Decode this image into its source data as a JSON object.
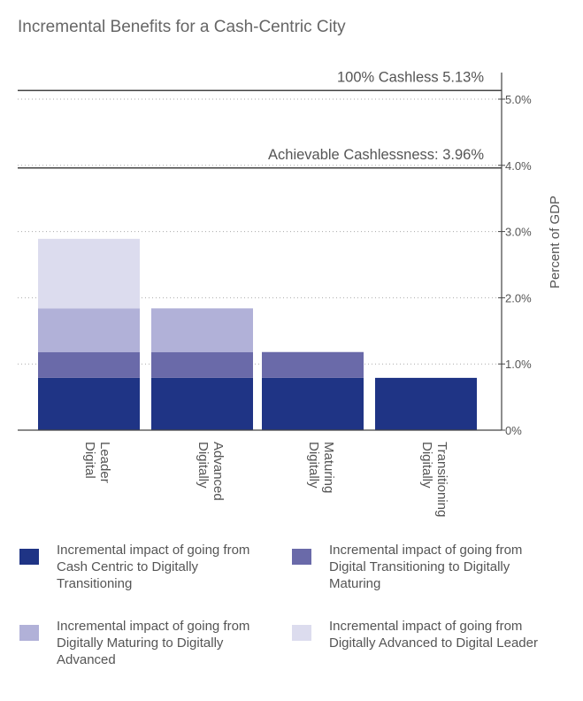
{
  "title": "Incremental Benefits for a Cash-Centric City",
  "chart_data": {
    "type": "bar",
    "stacked": true,
    "categories": [
      "Digital Leader",
      "Digitally Advanced",
      "Digitally Maturing",
      "Digitally Transitioning"
    ],
    "series": [
      {
        "name": "Incremental impact of going from Cash Centric to Digitally Transitioning",
        "color": "#1f3485",
        "values": [
          0.79,
          0.79,
          0.79,
          0.79
        ]
      },
      {
        "name": "Incremental impact of going from Digital Transitioning to Digitally Maturing",
        "color": "#6a6aa9",
        "values": [
          0.39,
          0.39,
          0.39,
          0
        ]
      },
      {
        "name": "Incremental impact of going from Digitally Maturing to Digitally Advanced",
        "color": "#b1b1d8",
        "values": [
          0.66,
          0.66,
          0,
          0
        ]
      },
      {
        "name": "Incremental impact of going from Digitally Advanced to Digital Leader",
        "color": "#dcdcee",
        "values": [
          1.05,
          0,
          0,
          0
        ]
      }
    ],
    "ylabel": "Percent of GDP",
    "ylim": [
      0,
      5.13
    ],
    "y_ticks": [
      "0%",
      "1.0%",
      "2.0%",
      "3.0%",
      "4.0%",
      "5.0%"
    ],
    "y_axis_side": "right",
    "reference_lines": [
      {
        "label": "100% Cashless 5.13%",
        "value": 5.13
      },
      {
        "label": "Achievable Cashlessness: 3.96%",
        "value": 3.96
      }
    ],
    "gridlines": "dotted",
    "legend_position": "bottom"
  },
  "colors": {
    "text": "#555555",
    "axis": "#444444",
    "grid": "#aaaaaa"
  }
}
